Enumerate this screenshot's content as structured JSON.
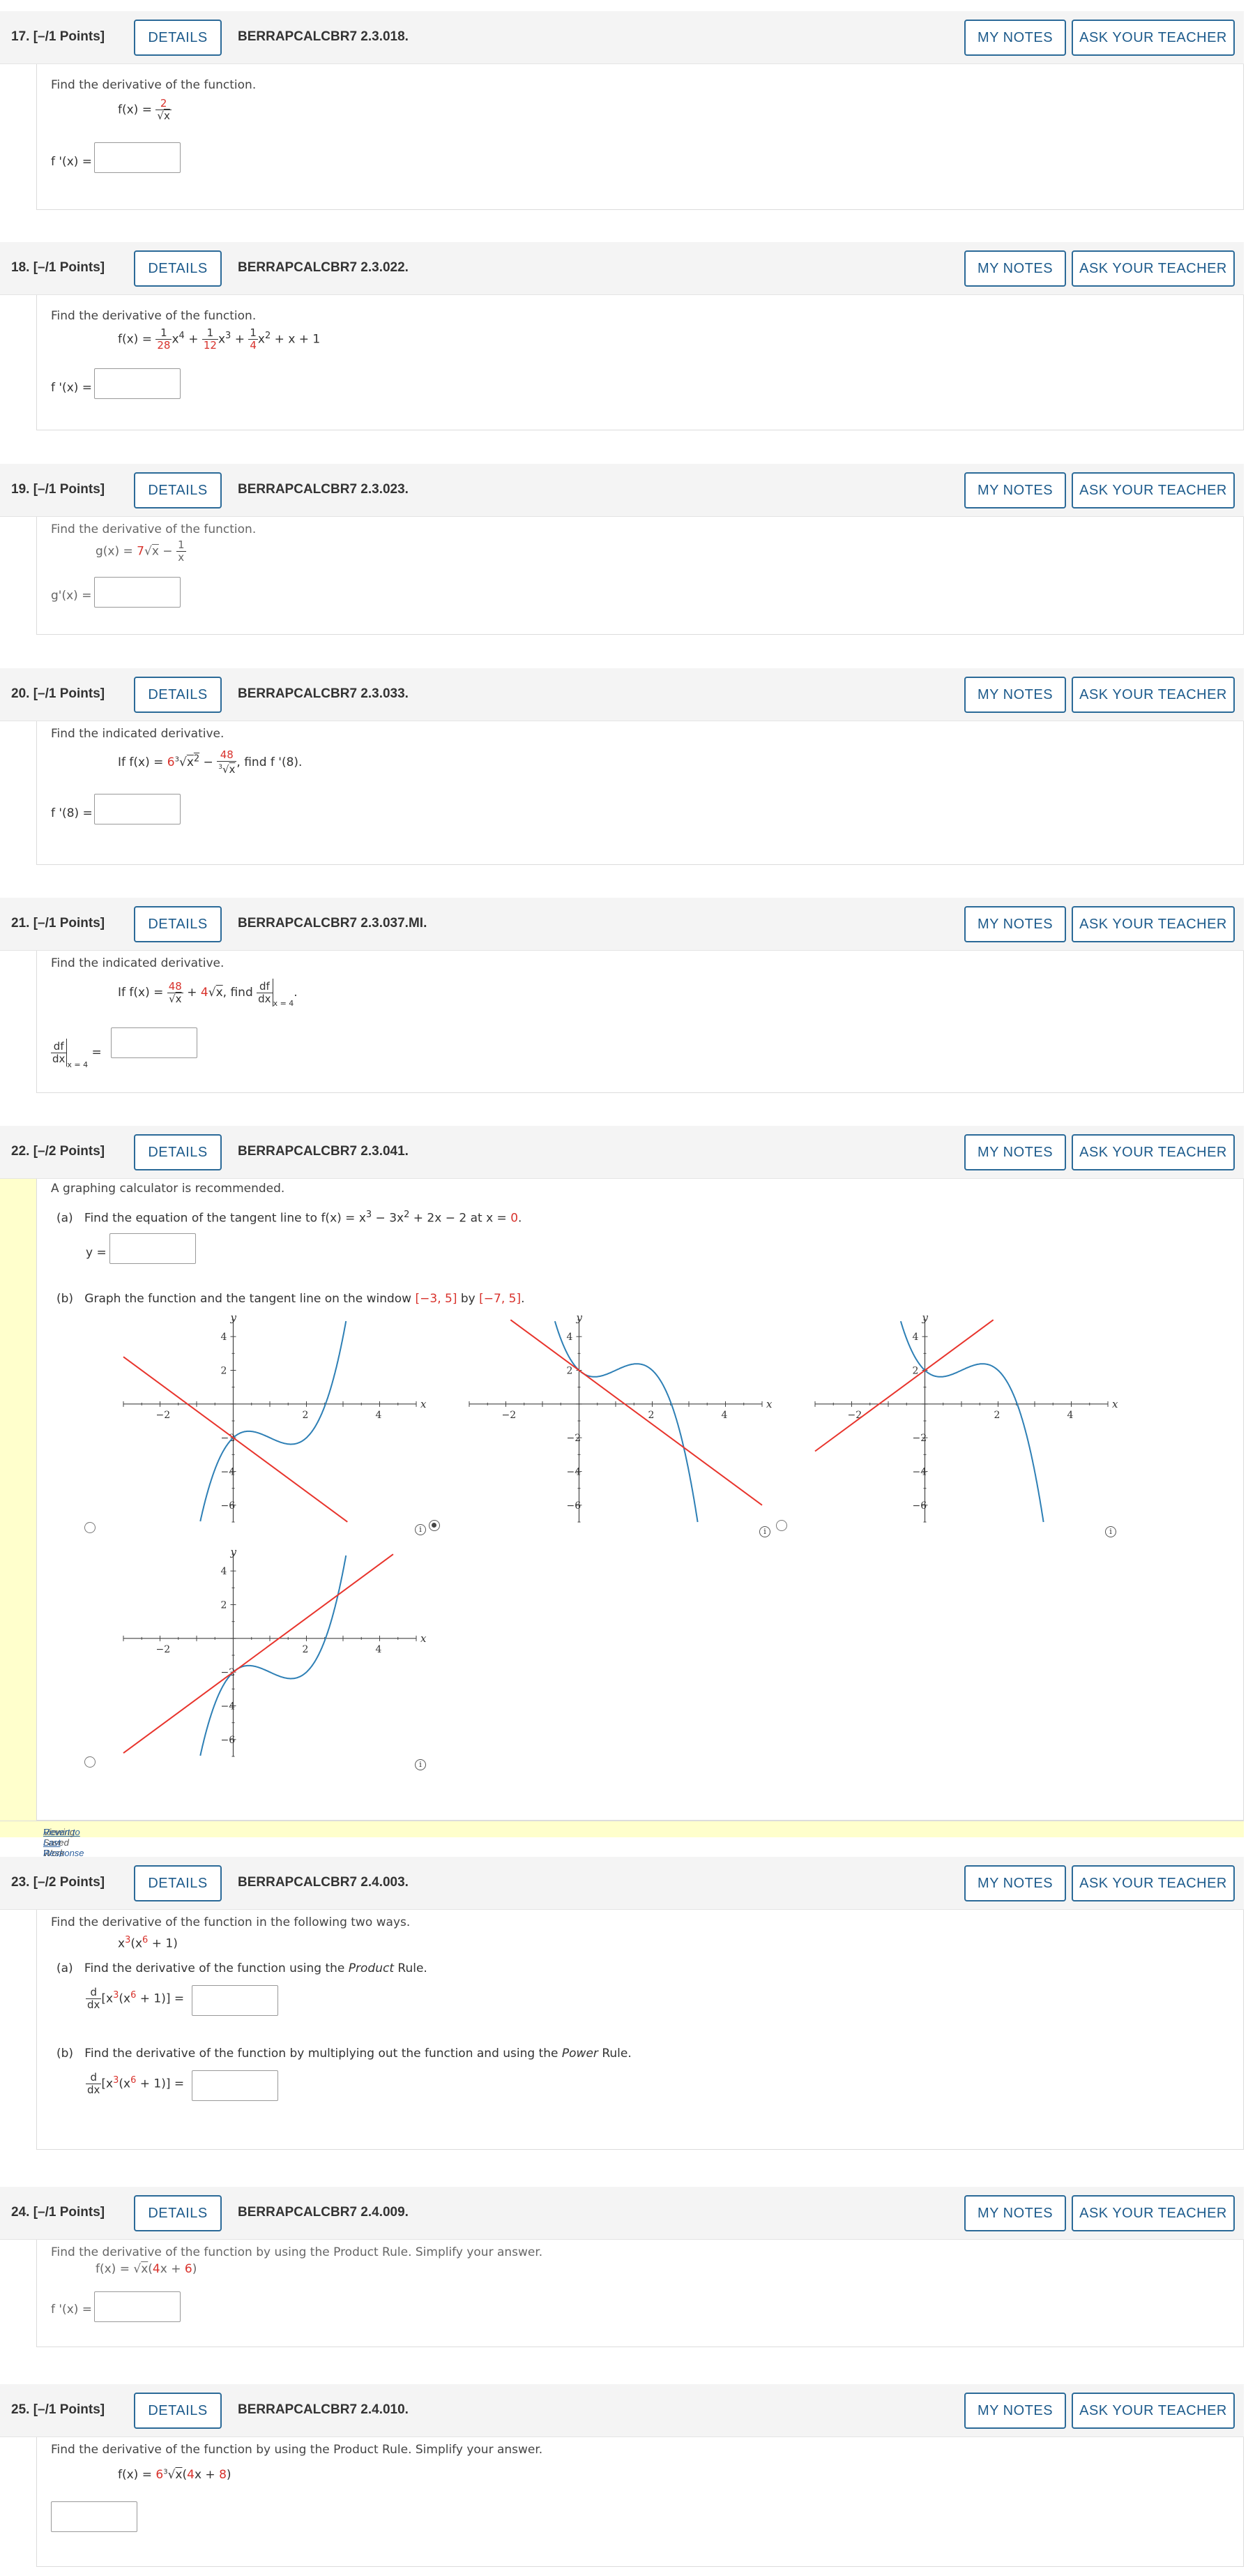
{
  "questions": [
    {
      "num": "17.",
      "points": "[–/1 Points]",
      "details": "DETAILS",
      "code": "BERRAPCALCBR7 2.3.018.",
      "my_notes": "MY NOTES",
      "ask": "ASK YOUR TEACHER",
      "prompt": "Find the derivative of the function.",
      "answer_label": "f '(x) ="
    },
    {
      "num": "18.",
      "points": "[–/1 Points]",
      "details": "DETAILS",
      "code": "BERRAPCALCBR7 2.3.022.",
      "my_notes": "MY NOTES",
      "ask": "ASK YOUR TEACHER",
      "prompt": "Find the derivative of the function.",
      "answer_label": "f '(x) ="
    },
    {
      "num": "19.",
      "points": "[–/1 Points]",
      "details": "DETAILS",
      "code": "BERRAPCALCBR7 2.3.023.",
      "my_notes": "MY NOTES",
      "ask": "ASK YOUR TEACHER",
      "prompt": "Find the derivative of the function.",
      "answer_label": "g'(x) ="
    },
    {
      "num": "20.",
      "points": "[–/1 Points]",
      "details": "DETAILS",
      "code": "BERRAPCALCBR7 2.3.033.",
      "my_notes": "MY NOTES",
      "ask": "ASK YOUR TEACHER",
      "prompt": "Find the indicated derivative.",
      "answer_label": "f '(8) ="
    },
    {
      "num": "21.",
      "points": "[–/1 Points]",
      "details": "DETAILS",
      "code": "BERRAPCALCBR7 2.3.037.MI.",
      "my_notes": "MY NOTES",
      "ask": "ASK YOUR TEACHER",
      "prompt": "Find the indicated derivative."
    },
    {
      "num": "22.",
      "points": "[–/2 Points]",
      "details": "DETAILS",
      "code": "BERRAPCALCBR7 2.3.041.",
      "my_notes": "MY NOTES",
      "ask": "ASK YOUR TEACHER",
      "prompt": "A graphing calculator is recommended.",
      "part_a": "(a)",
      "part_a_text": "Find the equation of the tangent line to",
      "part_a_at": "at",
      "y_label": "y =",
      "part_b": "(b)",
      "part_b_text": "Graph the function and the tangent line on the window",
      "part_b_by": "by",
      "window_x": "[−3, 5]",
      "window_y": "[−7, 5]",
      "saved_note": "Viewing Saved Work",
      "revert": "Revert to Last Response"
    },
    {
      "num": "23.",
      "points": "[–/2 Points]",
      "details": "DETAILS",
      "code": "BERRAPCALCBR7 2.4.003.",
      "my_notes": "MY NOTES",
      "ask": "ASK YOUR TEACHER",
      "prompt": "Find the derivative of the function in the following two ways.",
      "part_a": "(a)",
      "part_a_text": "Find the derivative of the function using the",
      "part_a_rule": "Product",
      "part_a_end": "Rule.",
      "part_b": "(b)",
      "part_b_text": "Find the derivative of the function by multiplying out the function and using the",
      "part_b_rule": "Power",
      "part_b_end": "Rule."
    },
    {
      "num": "24.",
      "points": "[–/1 Points]",
      "details": "DETAILS",
      "code": "BERRAPCALCBR7 2.4.009.",
      "my_notes": "MY NOTES",
      "ask": "ASK YOUR TEACHER",
      "prompt": "Find the derivative of the function by using the Product Rule. Simplify your answer.",
      "answer_label": "f '(x) ="
    },
    {
      "num": "25.",
      "points": "[–/1 Points]",
      "details": "DETAILS",
      "code": "BERRAPCALCBR7 2.4.010.",
      "my_notes": "MY NOTES",
      "ask": "ASK YOUR TEACHER",
      "prompt": "Find the derivative of the function by using the Product Rule. Simplify your answer."
    }
  ],
  "graphs": {
    "x_ticks": [
      "−2",
      "2",
      "4"
    ],
    "y_ticks": [
      "4",
      "2",
      "−2",
      "−4",
      "−6"
    ],
    "x_axis": "x",
    "y_axis": "y",
    "selected_option": 2
  },
  "colors": {
    "accent": "#2b6a98",
    "function_curve": "#2d7fb5",
    "tangent_line": "#e8342c",
    "red_value": "#d8322c",
    "saved_bg": "#ffffcc"
  }
}
